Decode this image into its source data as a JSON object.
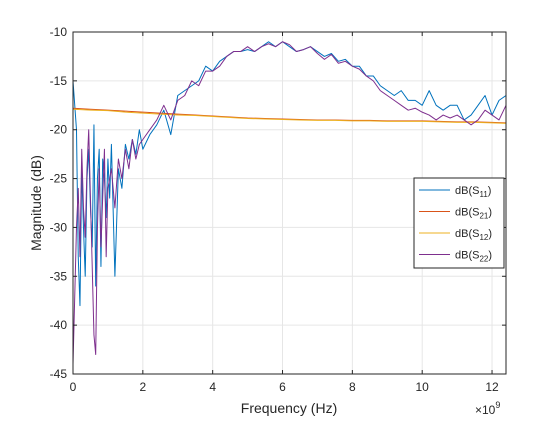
{
  "chart_data": {
    "type": "line",
    "title": "",
    "xlabel": "Frequency (Hz)",
    "ylabel": "Magnitude (dB)",
    "x_exponent_label": "×10",
    "x_exponent_power": "9",
    "xlim": [
      0,
      12.4
    ],
    "ylim": [
      -45,
      -10
    ],
    "x_scale": 1000000000,
    "xticks": [
      0,
      2,
      4,
      6,
      8,
      10,
      12
    ],
    "xtick_labels": [
      "0",
      "2",
      "4",
      "6",
      "8",
      "10",
      "12"
    ],
    "yticks": [
      -45,
      -40,
      -35,
      -30,
      -25,
      -20,
      -15,
      -10
    ],
    "ytick_labels": [
      "-45",
      "-40",
      "-35",
      "-30",
      "-25",
      "-20",
      "-15",
      "-10"
    ],
    "grid": true,
    "legend_position": "right",
    "colors": {
      "s11": "#0072BD",
      "s21": "#D95319",
      "s12": "#EDB120",
      "s22": "#7E2F8E",
      "grid": "#e6e6e6",
      "axis": "#262626"
    },
    "series": [
      {
        "id": "s11",
        "name": "dB(S11)",
        "legend_base": "dB(S",
        "legend_sub": "11",
        "legend_close": ")",
        "x": [
          0,
          0.1,
          0.15,
          0.2,
          0.25,
          0.3,
          0.35,
          0.4,
          0.45,
          0.5,
          0.55,
          0.6,
          0.65,
          0.7,
          0.75,
          0.8,
          0.85,
          0.9,
          0.95,
          1.0,
          1.05,
          1.1,
          1.2,
          1.3,
          1.4,
          1.5,
          1.6,
          1.7,
          1.8,
          1.9,
          2.0,
          2.2,
          2.4,
          2.6,
          2.8,
          3.0,
          3.2,
          3.4,
          3.6,
          3.8,
          4.0,
          4.2,
          4.4,
          4.6,
          4.8,
          5.0,
          5.2,
          5.4,
          5.6,
          5.8,
          6.0,
          6.2,
          6.4,
          6.6,
          6.8,
          7.0,
          7.2,
          7.4,
          7.6,
          7.8,
          8.0,
          8.2,
          8.4,
          8.6,
          8.8,
          9.0,
          9.2,
          9.4,
          9.6,
          9.8,
          10.0,
          10.2,
          10.4,
          10.6,
          10.8,
          11.0,
          11.2,
          11.4,
          11.6,
          11.8,
          12.0,
          12.2,
          12.4
        ],
        "y": [
          -15,
          -20,
          -33,
          -38,
          -24,
          -30,
          -35,
          -25,
          -22,
          -28,
          -32,
          -19.5,
          -36,
          -25,
          -22,
          -34,
          -23,
          -25,
          -29,
          -23,
          -27,
          -21.5,
          -35,
          -24,
          -26,
          -21.5,
          -23,
          -21,
          -22.5,
          -20,
          -22,
          -20.5,
          -19.5,
          -18,
          -20.5,
          -16.5,
          -16,
          -15.5,
          -15,
          -13.5,
          -14,
          -13,
          -12.5,
          -12,
          -12,
          -11.8,
          -12,
          -11.5,
          -11,
          -11.5,
          -11,
          -11.5,
          -12,
          -11.8,
          -11.5,
          -12,
          -12.5,
          -12.2,
          -13,
          -12.8,
          -13.5,
          -13.5,
          -14.5,
          -14.5,
          -15.5,
          -16,
          -16.5,
          -16,
          -17,
          -17,
          -17.5,
          -16,
          -17.5,
          -18,
          -17.5,
          -17.5,
          -19,
          -18.5,
          -17.5,
          -16.5,
          -18.5,
          -17,
          -16.5
        ]
      },
      {
        "id": "s21",
        "name": "dB(S21)",
        "legend_base": "dB(S",
        "legend_sub": "21",
        "legend_close": ")",
        "x": [
          0,
          0.5,
          1.0,
          1.5,
          2.0,
          2.5,
          3.0,
          3.5,
          4.0,
          4.5,
          5.0,
          5.5,
          6.0,
          6.5,
          7.0,
          7.5,
          8.0,
          8.5,
          9.0,
          9.5,
          10.0,
          10.5,
          11.0,
          11.5,
          12.0,
          12.4
        ],
        "y": [
          -17.8,
          -17.9,
          -18.0,
          -18.1,
          -18.2,
          -18.3,
          -18.4,
          -18.5,
          -18.6,
          -18.7,
          -18.8,
          -18.85,
          -18.9,
          -18.95,
          -19.0,
          -19.0,
          -19.05,
          -19.05,
          -19.1,
          -19.1,
          -19.1,
          -19.15,
          -19.2,
          -19.2,
          -19.25,
          -19.3
        ]
      },
      {
        "id": "s12",
        "name": "dB(S12)",
        "legend_base": "dB(S",
        "legend_sub": "12",
        "legend_close": ")",
        "x": [
          0,
          0.5,
          1.0,
          1.5,
          2.0,
          2.5,
          3.0,
          3.5,
          4.0,
          4.5,
          5.0,
          5.5,
          6.0,
          6.5,
          7.0,
          7.5,
          8.0,
          8.5,
          9.0,
          9.5,
          10.0,
          10.5,
          11.0,
          11.5,
          12.0,
          12.4
        ],
        "y": [
          -17.9,
          -18.0,
          -18.05,
          -18.2,
          -18.3,
          -18.4,
          -18.5,
          -18.55,
          -18.65,
          -18.75,
          -18.85,
          -18.9,
          -18.95,
          -19.0,
          -19.05,
          -19.05,
          -19.1,
          -19.1,
          -19.15,
          -19.15,
          -19.15,
          -19.2,
          -19.25,
          -19.25,
          -19.3,
          -19.35
        ]
      },
      {
        "id": "s22",
        "name": "dB(S22)",
        "legend_base": "dB(S",
        "legend_sub": "22",
        "legend_close": ")",
        "x": [
          0,
          0.1,
          0.15,
          0.2,
          0.25,
          0.3,
          0.35,
          0.4,
          0.45,
          0.5,
          0.55,
          0.6,
          0.65,
          0.7,
          0.75,
          0.8,
          0.85,
          0.9,
          0.95,
          1.0,
          1.1,
          1.2,
          1.3,
          1.4,
          1.5,
          1.6,
          1.7,
          1.8,
          1.9,
          2.0,
          2.2,
          2.4,
          2.6,
          2.8,
          3.0,
          3.2,
          3.4,
          3.6,
          3.8,
          4.0,
          4.2,
          4.4,
          4.6,
          4.8,
          5.0,
          5.2,
          5.4,
          5.6,
          5.8,
          6.0,
          6.2,
          6.4,
          6.6,
          6.8,
          7.0,
          7.2,
          7.4,
          7.6,
          7.8,
          8.0,
          8.2,
          8.4,
          8.6,
          8.8,
          9.0,
          9.2,
          9.4,
          9.6,
          9.8,
          10.0,
          10.2,
          10.4,
          10.6,
          10.8,
          11.0,
          11.2,
          11.4,
          11.6,
          11.8,
          12.0,
          12.2,
          12.4
        ],
        "y": [
          -44,
          -30,
          -26,
          -33,
          -22,
          -28,
          -31,
          -24,
          -20,
          -27,
          -34,
          -41,
          -43,
          -30,
          -24,
          -32,
          -27,
          -22,
          -33,
          -26,
          -24,
          -28,
          -23,
          -25,
          -22,
          -24,
          -21,
          -23,
          -21.5,
          -21,
          -20,
          -19,
          -17.5,
          -19,
          -17,
          -16.5,
          -15,
          -15.5,
          -14,
          -14,
          -13.5,
          -12.5,
          -12,
          -12,
          -11.5,
          -12,
          -11.5,
          -11.2,
          -11.5,
          -11,
          -11.3,
          -12,
          -11.8,
          -11.5,
          -12.2,
          -12.8,
          -12.3,
          -13.2,
          -13,
          -13.5,
          -13.8,
          -14.5,
          -15,
          -16,
          -16.5,
          -17,
          -17.5,
          -18,
          -17.8,
          -18.2,
          -18.5,
          -19,
          -18.5,
          -18.8,
          -18.5,
          -19,
          -19.5,
          -19,
          -18,
          -18.5,
          -19,
          -17.5
        ]
      }
    ]
  }
}
